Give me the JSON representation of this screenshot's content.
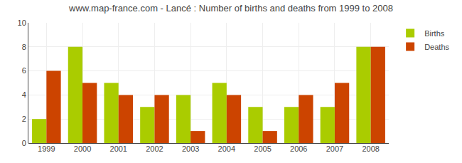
{
  "chart_data": {
    "type": "bar",
    "title": "www.map-france.com - Lancé : Number of births and deaths from 1999 to 2008",
    "categories": [
      "1999",
      "2000",
      "2001",
      "2002",
      "2003",
      "2004",
      "2005",
      "2006",
      "2007",
      "2008"
    ],
    "series": [
      {
        "name": "Births",
        "color": "#aacc00",
        "values": [
          2,
          8,
          5,
          3,
          4,
          5,
          3,
          3,
          3,
          8
        ]
      },
      {
        "name": "Deaths",
        "color": "#cc4400",
        "values": [
          6,
          5,
          4,
          4,
          1,
          4,
          1,
          4,
          5,
          8
        ]
      }
    ],
    "ylim": [
      0,
      10
    ],
    "yticks": [
      0,
      2,
      4,
      6,
      8,
      10
    ],
    "grid": true,
    "legend": "upper right"
  }
}
